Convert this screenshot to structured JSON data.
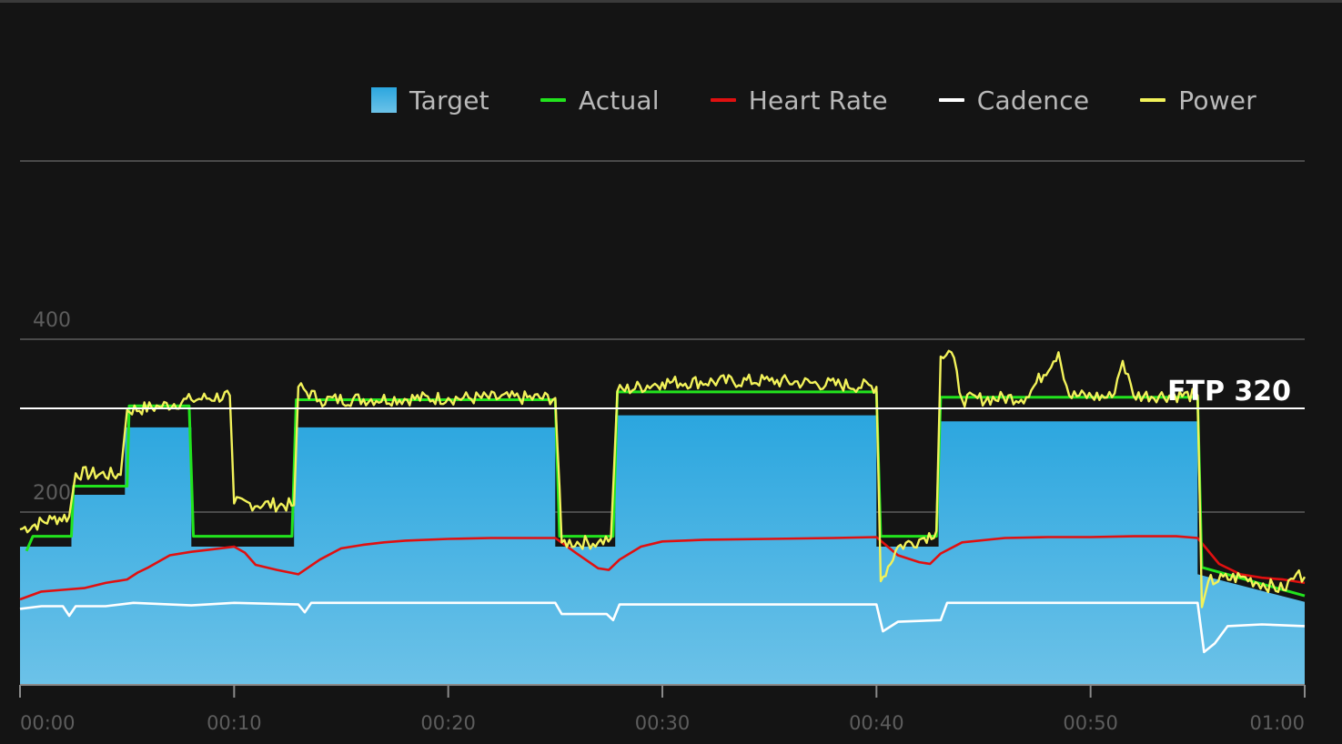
{
  "colors": {
    "background": "#141414",
    "target_top": "#2ba6df",
    "target_bottom": "#6cc2e8",
    "actual": "#22e31d",
    "heart_rate": "#e01010",
    "cadence": "#ffffff",
    "power": "#f2f25a",
    "ftp": "#ffffff",
    "grid": "#4a4a4a",
    "tick_label": "#5d5d5d"
  },
  "legend": [
    {
      "key": "target",
      "label": "Target",
      "color": "#3badea",
      "shape": "box"
    },
    {
      "key": "actual",
      "label": "Actual",
      "color": "#22e31d",
      "shape": "line"
    },
    {
      "key": "heart_rate",
      "label": "Heart Rate",
      "color": "#e01010",
      "shape": "line"
    },
    {
      "key": "cadence",
      "label": "Cadence",
      "color": "#ffffff",
      "shape": "line"
    },
    {
      "key": "power",
      "label": "Power",
      "color": "#f2f25a",
      "shape": "line"
    }
  ],
  "chart_data": {
    "type": "area",
    "x_unit": "minutes",
    "xlim": [
      0,
      60
    ],
    "ylim": [
      0,
      500
    ],
    "grid": true,
    "legend_position": "top-right",
    "x_ticks": [
      {
        "value": 0,
        "label": "00:00"
      },
      {
        "value": 10,
        "label": "00:10"
      },
      {
        "value": 20,
        "label": "00:20"
      },
      {
        "value": 30,
        "label": "00:30"
      },
      {
        "value": 40,
        "label": "00:40"
      },
      {
        "value": 50,
        "label": "00:50"
      },
      {
        "value": 60,
        "label": "01:00"
      }
    ],
    "y_ticks": [
      {
        "value": 200,
        "label": "200"
      },
      {
        "value": 400,
        "label": "400"
      }
    ],
    "ftp": {
      "value": 320,
      "label": "FTP 320"
    },
    "series": [
      {
        "key": "target",
        "name": "Target",
        "type": "step_area",
        "points": [
          [
            0,
            160
          ],
          [
            2.4,
            160
          ],
          [
            2.4,
            220
          ],
          [
            4.9,
            220
          ],
          [
            4.9,
            298
          ],
          [
            8,
            298
          ],
          [
            8,
            160
          ],
          [
            12.8,
            160
          ],
          [
            12.8,
            298
          ],
          [
            25,
            298
          ],
          [
            25,
            160
          ],
          [
            27.8,
            160
          ],
          [
            27.8,
            312
          ],
          [
            40,
            312
          ],
          [
            40,
            160
          ],
          [
            42.9,
            160
          ],
          [
            42.9,
            305
          ],
          [
            55,
            305
          ],
          [
            55,
            128
          ],
          [
            60,
            96
          ]
        ]
      },
      {
        "key": "actual",
        "name": "Actual",
        "type": "step_line",
        "points": [
          [
            0.3,
            155
          ],
          [
            0.6,
            172
          ],
          [
            2.4,
            172
          ],
          [
            2.5,
            230
          ],
          [
            5,
            230
          ],
          [
            5.1,
            323
          ],
          [
            7.9,
            323
          ],
          [
            8.1,
            172
          ],
          [
            12.7,
            172
          ],
          [
            12.9,
            330
          ],
          [
            25,
            330
          ],
          [
            25.2,
            172
          ],
          [
            27.7,
            172
          ],
          [
            27.9,
            339
          ],
          [
            40,
            339
          ],
          [
            40.2,
            172
          ],
          [
            42.8,
            172
          ],
          [
            43,
            333
          ],
          [
            55,
            333
          ],
          [
            55.2,
            136
          ],
          [
            60,
            103
          ]
        ]
      },
      {
        "key": "heart_rate",
        "name": "Heart Rate",
        "type": "line",
        "points": [
          [
            0,
            99
          ],
          [
            1,
            108
          ],
          [
            2,
            110
          ],
          [
            3,
            112
          ],
          [
            4,
            118
          ],
          [
            5,
            122
          ],
          [
            5.5,
            130
          ],
          [
            6,
            136
          ],
          [
            7,
            150
          ],
          [
            8,
            154
          ],
          [
            9,
            157
          ],
          [
            10,
            160
          ],
          [
            10.5,
            153
          ],
          [
            11,
            139
          ],
          [
            12,
            133
          ],
          [
            13,
            128
          ],
          [
            14,
            145
          ],
          [
            15,
            158
          ],
          [
            16,
            162
          ],
          [
            17,
            165
          ],
          [
            18,
            167
          ],
          [
            20,
            169
          ],
          [
            22,
            170
          ],
          [
            24,
            170
          ],
          [
            25,
            170
          ],
          [
            26,
            152
          ],
          [
            27,
            135
          ],
          [
            27.5,
            133
          ],
          [
            28,
            145
          ],
          [
            29,
            160
          ],
          [
            30,
            166
          ],
          [
            32,
            168
          ],
          [
            35,
            169
          ],
          [
            38,
            170
          ],
          [
            40,
            171
          ],
          [
            41,
            150
          ],
          [
            42,
            142
          ],
          [
            42.5,
            140
          ],
          [
            43,
            152
          ],
          [
            44,
            165
          ],
          [
            46,
            170
          ],
          [
            48,
            171
          ],
          [
            50,
            171
          ],
          [
            52,
            172
          ],
          [
            54,
            172
          ],
          [
            55,
            170
          ],
          [
            56,
            140
          ],
          [
            57,
            128
          ],
          [
            58,
            124
          ],
          [
            59,
            122
          ],
          [
            60,
            118
          ]
        ]
      },
      {
        "key": "cadence",
        "name": "Cadence",
        "type": "line",
        "points": [
          [
            0,
            88
          ],
          [
            1,
            91
          ],
          [
            2,
            91
          ],
          [
            2.3,
            80
          ],
          [
            2.6,
            91
          ],
          [
            4,
            91
          ],
          [
            5.3,
            95
          ],
          [
            8,
            92
          ],
          [
            10,
            95
          ],
          [
            13,
            93
          ],
          [
            13.3,
            84
          ],
          [
            13.6,
            95
          ],
          [
            16,
            95
          ],
          [
            20,
            95
          ],
          [
            25,
            95
          ],
          [
            25.3,
            82
          ],
          [
            27.4,
            82
          ],
          [
            27.7,
            75
          ],
          [
            28,
            93
          ],
          [
            30,
            93
          ],
          [
            35,
            93
          ],
          [
            40,
            93
          ],
          [
            40.3,
            62
          ],
          [
            41,
            73
          ],
          [
            43,
            75
          ],
          [
            43.3,
            95
          ],
          [
            45,
            95
          ],
          [
            50,
            95
          ],
          [
            55,
            95
          ],
          [
            55.3,
            38
          ],
          [
            55.8,
            48
          ],
          [
            56.4,
            68
          ],
          [
            58,
            70
          ],
          [
            60,
            68
          ]
        ]
      },
      {
        "key": "power",
        "name": "Power",
        "type": "jagged_line",
        "amplitude": 8,
        "seed": 7,
        "points": [
          [
            0,
            180
          ],
          [
            1.5,
            192
          ],
          [
            2.3,
            195
          ],
          [
            2.6,
            245
          ],
          [
            4.7,
            243
          ],
          [
            5,
            318
          ],
          [
            6.5,
            322
          ],
          [
            8,
            330
          ],
          [
            9.8,
            335
          ],
          [
            10,
            210
          ],
          [
            12.8,
            208
          ],
          [
            13,
            345
          ],
          [
            14,
            330
          ],
          [
            20,
            332
          ],
          [
            25,
            332
          ],
          [
            25.3,
            165
          ],
          [
            27,
            165
          ],
          [
            27.6,
            170
          ],
          [
            27.9,
            340
          ],
          [
            30,
            350
          ],
          [
            35,
            352
          ],
          [
            40,
            345
          ],
          [
            40.2,
            120
          ],
          [
            41,
            160
          ],
          [
            42,
            168
          ],
          [
            42.8,
            178
          ],
          [
            43,
            380
          ],
          [
            43.5,
            385
          ],
          [
            44,
            330
          ],
          [
            47,
            333
          ],
          [
            48.5,
            385
          ],
          [
            49,
            335
          ],
          [
            51,
            333
          ],
          [
            51.5,
            375
          ],
          [
            52,
            335
          ],
          [
            55,
            335
          ],
          [
            55.2,
            90
          ],
          [
            55.5,
            120
          ],
          [
            57,
            125
          ],
          [
            59,
            110
          ],
          [
            59.6,
            128
          ],
          [
            60,
            125
          ]
        ]
      }
    ]
  }
}
